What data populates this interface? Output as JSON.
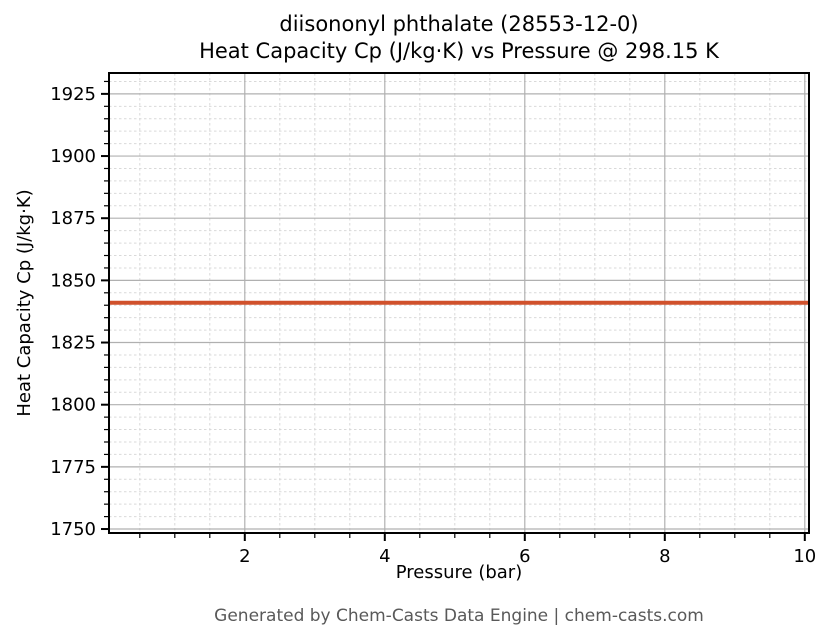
{
  "page": {
    "footer": "Generated by Chem-Casts Data Engine | chem-casts.com"
  },
  "chart_data": {
    "type": "line",
    "title": "diisononyl phthalate (28553-12-0)",
    "subtitle": "Heat Capacity Cp (J/kg·K) vs Pressure @ 298.15 K",
    "xlabel": "Pressure (bar)",
    "ylabel": "Heat Capacity Cp (J/kg·K)",
    "xlim": [
      0.06,
      10.06
    ],
    "ylim": [
      1748.4,
      1933.4
    ],
    "xticks": [
      2,
      4,
      6,
      8,
      10
    ],
    "yticks": [
      1750,
      1775,
      1800,
      1825,
      1850,
      1875,
      1900,
      1925
    ],
    "x_minor_step": 0.5,
    "y_minor_step": 5,
    "grid": {
      "major": true,
      "minor": true,
      "major_color": "#b0b0b0",
      "minor_color": "#d9d9d9"
    },
    "legend": "none",
    "series": [
      {
        "name": "Heat Capacity Cp",
        "color": "#d0512c",
        "linewidth": 4,
        "x": [
          0.06,
          10.06
        ],
        "y": [
          1841,
          1841
        ]
      }
    ]
  }
}
